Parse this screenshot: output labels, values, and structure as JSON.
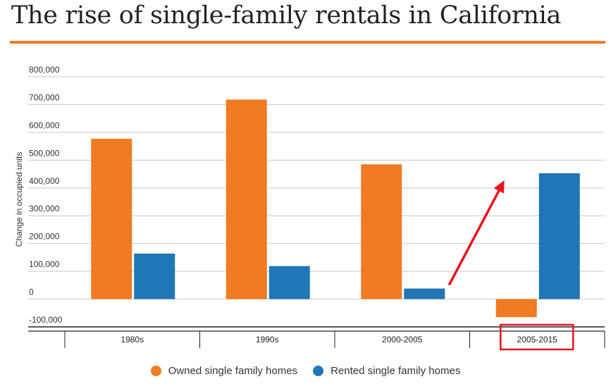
{
  "title": "The rise of single-family rentals in California",
  "colors": {
    "accent": "#f07b23",
    "owned": "#f07b23",
    "rented": "#2176b5",
    "highlight": "#e8131b"
  },
  "chart_data": {
    "type": "bar",
    "ylabel": "Change in occupied units",
    "xlabel": "",
    "categories": [
      "1980s",
      "1990s",
      "2000-2005",
      "2005-2015"
    ],
    "series": [
      {
        "name": "Owned single family homes",
        "color": "#f07b23",
        "values": [
          577000,
          718000,
          485000,
          -65000
        ]
      },
      {
        "name": "Rented single family homes",
        "color": "#2176b5",
        "values": [
          164000,
          119000,
          38000,
          453000
        ]
      }
    ],
    "yticks": [
      "-100,000",
      "0",
      "100,000",
      "200,000",
      "300,000",
      "400,000",
      "500,000",
      "600,000",
      "700,000",
      "800,000"
    ],
    "ylim": [
      -100000,
      800000
    ],
    "grid": true,
    "legend": "bottom-center",
    "annotations": [
      {
        "type": "arrow",
        "from": "2000-2005 rented bar",
        "to": "2005-2015 rented bar",
        "color": "#e8131b"
      },
      {
        "type": "box",
        "target": "2005-2015 category label",
        "color": "#e8131b"
      }
    ]
  }
}
